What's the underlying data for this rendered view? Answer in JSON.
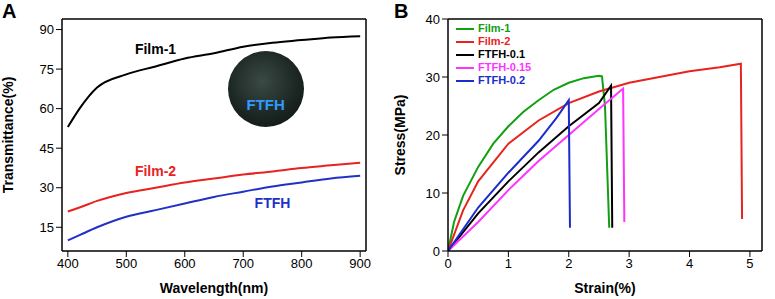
{
  "chart_data": [
    {
      "type": "line",
      "panel_label": "A",
      "x_label": "Wavelength(nm)",
      "y_label": "Transmittance(%)",
      "x": [
        400,
        420,
        450,
        500,
        550,
        600,
        650,
        700,
        750,
        800,
        850,
        900
      ],
      "series": [
        {
          "name": "Film-1",
          "color": "#000000",
          "values": [
            53,
            60,
            68,
            73,
            76,
            79,
            81,
            83.5,
            85,
            86,
            87,
            87.5
          ]
        },
        {
          "name": "Film-2",
          "color": "#e8231f",
          "values": [
            21,
            22.5,
            25,
            28,
            30,
            32,
            33.5,
            35,
            36.2,
            37.5,
            38.5,
            39.5
          ]
        },
        {
          "name": "FTFH",
          "color": "#2230c8",
          "values": [
            10,
            12,
            15,
            19,
            21.5,
            24,
            26.5,
            28.5,
            30.5,
            32,
            33.5,
            34.5
          ]
        }
      ],
      "annotations": [
        {
          "text": "Film-1",
          "series": "Film-1",
          "x": 550
        },
        {
          "text": "Film-2",
          "series": "Film-2",
          "x": 550
        },
        {
          "text": "FTFH",
          "series": "FTFH",
          "x": 750
        }
      ],
      "inset_text": "FTFH",
      "xlim": [
        390,
        910
      ],
      "xticks": [
        400,
        500,
        600,
        700,
        800,
        900
      ],
      "ylim": [
        6,
        94
      ],
      "yticks": [
        15,
        30,
        45,
        60,
        75,
        90
      ],
      "grid": false
    },
    {
      "type": "line",
      "panel_label": "B",
      "x_label": "Strain(%)",
      "y_label": "Stress(MPa)",
      "series": [
        {
          "name": "Film-1",
          "color": "#12a012",
          "x": [
            0,
            0.1,
            0.25,
            0.5,
            0.75,
            1,
            1.25,
            1.5,
            1.75,
            2,
            2.25,
            2.5,
            2.55,
            2.6,
            2.65,
            2.67
          ],
          "values": [
            0,
            5,
            9.5,
            14.5,
            18.5,
            21.5,
            24,
            26,
            27.8,
            29,
            29.8,
            30.2,
            30.1,
            25,
            10,
            4
          ]
        },
        {
          "name": "Film-2",
          "color": "#e8231f",
          "x": [
            0,
            0.25,
            0.5,
            1,
            1.5,
            2,
            2.5,
            3,
            3.5,
            4,
            4.5,
            4.85,
            4.87
          ],
          "values": [
            0,
            7,
            12,
            18.5,
            22.5,
            25.5,
            27.5,
            29,
            30,
            31,
            31.7,
            32.3,
            5.5
          ]
        },
        {
          "name": "FTFH-0.1",
          "color": "#000000",
          "x": [
            0,
            0.5,
            1,
            1.5,
            2,
            2.5,
            2.7,
            2.72
          ],
          "values": [
            0,
            6.5,
            12,
            17,
            21.5,
            25.5,
            28.5,
            4
          ]
        },
        {
          "name": "FTFH-0.15",
          "color": "#ff33ff",
          "x": [
            0,
            0.5,
            1,
            1.5,
            2,
            2.5,
            2.9,
            2.92
          ],
          "values": [
            0,
            5,
            10.5,
            15.5,
            20,
            24.5,
            28,
            5
          ]
        },
        {
          "name": "FTFH-0.2",
          "color": "#1b2ccc",
          "x": [
            0,
            0.5,
            1,
            1.5,
            1.8,
            2,
            2.02
          ],
          "values": [
            0,
            7.5,
            13.5,
            19,
            23,
            26,
            4
          ]
        }
      ],
      "xlim": [
        0,
        5.2
      ],
      "xticks": [
        0,
        1,
        2,
        3,
        4,
        5
      ],
      "ylim": [
        0,
        40
      ],
      "yticks": [
        0,
        10,
        20,
        30,
        40
      ],
      "legend": "upper left",
      "grid": false
    }
  ]
}
